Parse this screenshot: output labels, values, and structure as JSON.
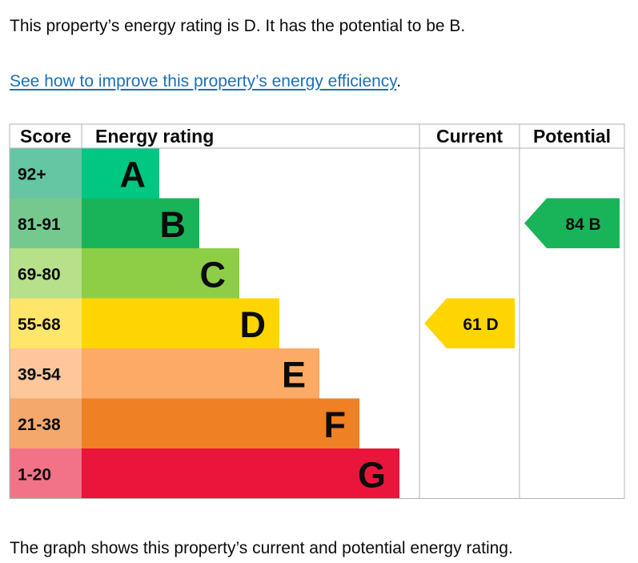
{
  "intro_text": "This property’s energy rating is D. It has the potential to be B.",
  "improve_link": "See how to improve this property’s energy efficiency",
  "improve_link_suffix": ".",
  "footer_text": "The graph shows this property’s current and potential energy rating.",
  "chart_data": {
    "type": "table",
    "title": "Energy rating",
    "columns": [
      "Score",
      "Energy rating",
      "Current",
      "Potential"
    ],
    "bands": [
      {
        "letter": "A",
        "range": "92+",
        "color": "#00c781",
        "score_bg": "#64c6a3"
      },
      {
        "letter": "B",
        "range": "81-91",
        "color": "#19b459",
        "score_bg": "#75c98e"
      },
      {
        "letter": "C",
        "range": "69-80",
        "color": "#8dce46",
        "score_bg": "#b6e089"
      },
      {
        "letter": "D",
        "range": "55-68",
        "color": "#ffd500",
        "score_bg": "#ffe66b"
      },
      {
        "letter": "E",
        "range": "39-54",
        "color": "#fcaa65",
        "score_bg": "#fdc79a"
      },
      {
        "letter": "F",
        "range": "21-38",
        "color": "#ef8023",
        "score_bg": "#f4a86b"
      },
      {
        "letter": "G",
        "range": "1-20",
        "color": "#e9153b",
        "score_bg": "#f27388"
      }
    ],
    "current": {
      "score": 61,
      "band": "D",
      "label": "61 D",
      "color": "#ffd500",
      "text_color": "#0b0c0c"
    },
    "potential": {
      "score": 84,
      "band": "B",
      "label": "84 B",
      "color": "#19b459",
      "text_color": "#0b0c0c"
    }
  }
}
